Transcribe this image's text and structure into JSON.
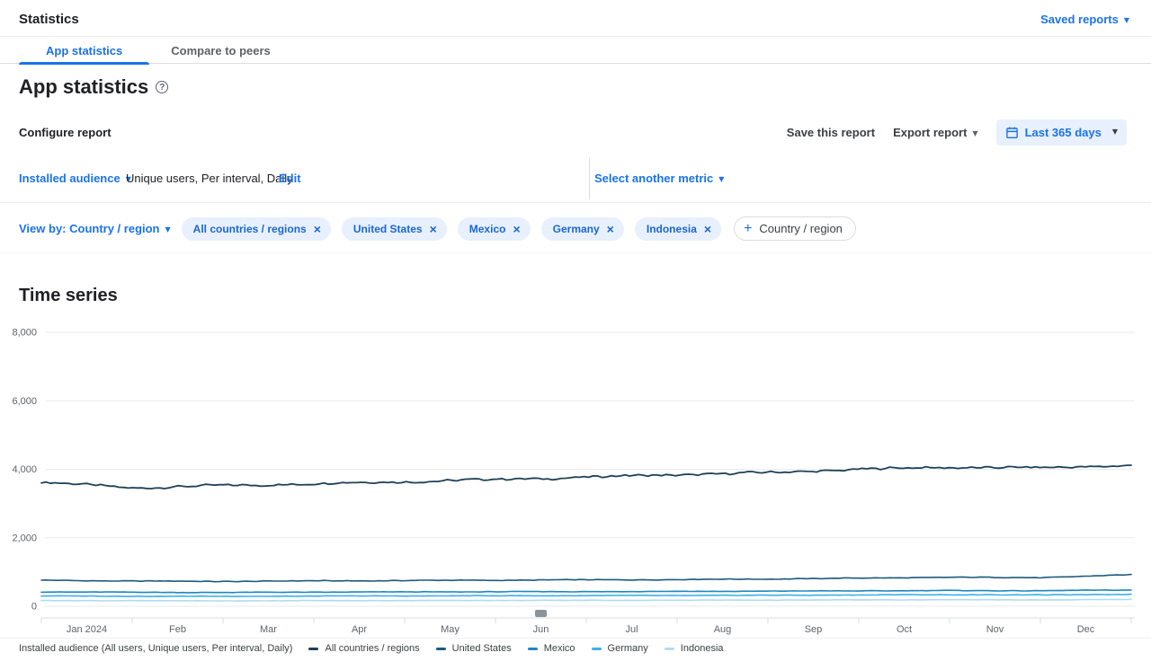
{
  "icons": {
    "dropdown_arrow": "▼",
    "plus": "+",
    "close": "×",
    "help": "?"
  },
  "header": {
    "title": "Statistics",
    "saved_reports_label": "Saved reports"
  },
  "tabs": [
    {
      "label": "App statistics",
      "active": true
    },
    {
      "label": "Compare to peers",
      "active": false
    }
  ],
  "page": {
    "title": "App statistics"
  },
  "configure": {
    "section_label": "Configure report",
    "save_label": "Save this report",
    "export_label": "Export report",
    "date_range_label": "Last 365 days",
    "metric_dropdown": "Installed audience",
    "metric_detail": "Unique users, Per interval, Daily",
    "edit_label": "Edit",
    "add_metric_label": "Select another metric"
  },
  "view_by": {
    "label": "View by: Country / region",
    "chips": [
      "All countries / regions",
      "United States",
      "Mexico",
      "Germany",
      "Indonesia"
    ],
    "add_chip_label": "Country / region"
  },
  "chart_data": {
    "type": "line",
    "title": "Time series",
    "ylim": [
      0,
      8000
    ],
    "yticks": [
      0,
      2000,
      4000,
      6000,
      8000
    ],
    "ytick_labels": [
      "0",
      "2,000",
      "4,000",
      "6,000",
      "8,000"
    ],
    "x_tick_labels": [
      "Jan 2024",
      "Feb",
      "Mar",
      "Apr",
      "May",
      "Jun",
      "Jul",
      "Aug",
      "Sep",
      "Oct",
      "Nov",
      "Dec"
    ],
    "grid": true,
    "legend_position": "bottom",
    "legend_prefix": "Installed audience (All users, Unique users, Per interval, Daily)",
    "series": [
      {
        "name": "All countries / regions",
        "color": "#1e4156",
        "noise": 40,
        "monthly_values": [
          3620,
          3460,
          3520,
          3580,
          3640,
          3700,
          3770,
          3840,
          3900,
          4000,
          4060,
          4040,
          4120
        ]
      },
      {
        "name": "United States",
        "color": "#1d5a7d",
        "noise": 12,
        "monthly_values": [
          760,
          735,
          725,
          740,
          750,
          760,
          770,
          780,
          795,
          820,
          845,
          835,
          920
        ]
      },
      {
        "name": "Mexico",
        "color": "#1f86bf",
        "noise": 8,
        "monthly_values": [
          420,
          408,
          402,
          412,
          418,
          424,
          428,
          434,
          440,
          450,
          458,
          452,
          475
        ]
      },
      {
        "name": "Germany",
        "color": "#3eafe6",
        "noise": 7,
        "monthly_values": [
          300,
          292,
          288,
          296,
          302,
          306,
          310,
          314,
          320,
          330,
          336,
          330,
          348
        ]
      },
      {
        "name": "Indonesia",
        "color": "#aedcf2",
        "noise": 5,
        "monthly_values": [
          168,
          162,
          158,
          163,
          167,
          170,
          173,
          176,
          179,
          186,
          190,
          186,
          198
        ]
      }
    ]
  }
}
